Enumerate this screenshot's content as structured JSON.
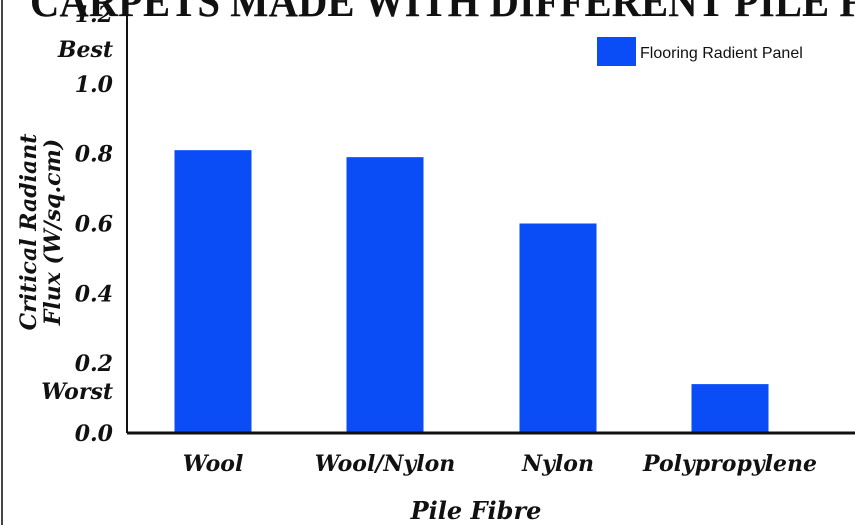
{
  "chart_data": {
    "type": "bar",
    "title": "CARPETS MADE WITH DIFFERENT PILE FI",
    "categories": [
      "Wool",
      "Wool/Nylon",
      "Nylon",
      "Polypropylene"
    ],
    "series": [
      {
        "name": "Flooring Radient Panel",
        "values": [
          0.81,
          0.79,
          0.6,
          0.14
        ]
      }
    ],
    "xlabel": "Pile Fibre",
    "ylabel_line1": "Critical Radiant",
    "ylabel_line2": "Flux (W/sq.cm)",
    "ylim": [
      0,
      1.2
    ],
    "yticks": [
      {
        "value": 0.0,
        "label": "0.0"
      },
      {
        "value": 0.2,
        "label": "0.2"
      },
      {
        "value": 0.4,
        "label": "0.4"
      },
      {
        "value": 0.6,
        "label": "0.6"
      },
      {
        "value": 0.8,
        "label": "0.8"
      },
      {
        "value": 1.0,
        "label": "1.0"
      },
      {
        "value": 1.2,
        "label": "1.2"
      }
    ],
    "annotations": [
      {
        "value": 1.1,
        "label": "Best"
      },
      {
        "value": 0.12,
        "label": "Worst"
      }
    ],
    "grid": false,
    "legend_position": "top-right",
    "bar_color": "#0a4cf5"
  }
}
